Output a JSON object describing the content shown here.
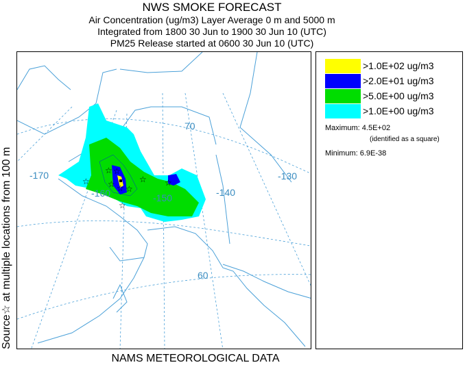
{
  "title": "NWS SMOKE FORECAST",
  "subtitle_lines": [
    "Air Concentration (ug/m3) Layer Average     0 m and  5000 m",
    "Integrated from 1800 30 Jun to 1900 30 Jun 10 (UTC)",
    "PM25 Release started at 0600 30 Jun 10 (UTC)"
  ],
  "side_label": "Source☆   at multiple locations   from    100 m",
  "footer": "NAMS METEOROLOGICAL DATA",
  "map": {
    "grid_labels": [
      {
        "text": "-170",
        "name": "lon-label-170w"
      },
      {
        "text": "-160",
        "name": "lon-label-160w"
      },
      {
        "text": "-150",
        "name": "lon-label-150w"
      },
      {
        "text": "-140",
        "name": "lon-label-140w"
      },
      {
        "text": "-130",
        "name": "lon-label-130w"
      },
      {
        "text": "70",
        "name": "lat-label-70n"
      },
      {
        "text": "60",
        "name": "lat-label-60n"
      }
    ],
    "colors": {
      "coast": "#4aa0d8",
      "grid": "#4aa0d8",
      "label": "#3a8cc0"
    }
  },
  "legend": {
    "entries": [
      {
        "label": ">1.0E+02 ug/m3",
        "color": "#ffff00"
      },
      {
        "label": ">2.0E+01 ug/m3",
        "color": "#0000ff"
      },
      {
        "label": ">5.0E+00 ug/m3",
        "color": "#00dd00"
      },
      {
        "label": ">1.0E+00 ug/m3",
        "color": "#00ffff"
      }
    ],
    "maximum": "Maximum: 4.5E+02",
    "maximum_note": "(identified as a square)",
    "minimum": "Minimum: 6.9E-38"
  }
}
